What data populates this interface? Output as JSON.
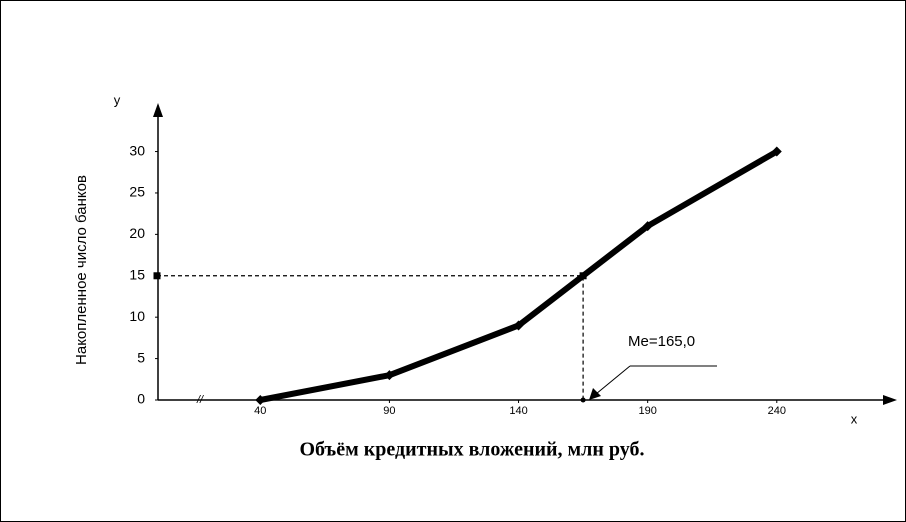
{
  "chart_data": {
    "type": "line",
    "x_label": "Объём кредитных вложений, млн руб.",
    "y_label": "Накопленное число банков",
    "x_axis_symbol": "х",
    "y_axis_symbol": "у",
    "x": [
      40,
      90,
      140,
      190,
      240
    ],
    "series": [
      {
        "name": "Накопленное число банков",
        "color": "#000000",
        "values": [
          0,
          3,
          9,
          21,
          30
        ]
      }
    ],
    "xlim": [
      0,
      285
    ],
    "ylim": [
      0,
      35.5
    ],
    "xticks": [
      40,
      90,
      140,
      190,
      240
    ],
    "yticks": [
      0,
      5,
      10,
      15,
      20,
      25,
      30
    ],
    "median": {
      "x": 165,
      "y": 15,
      "label": "Me=165,0"
    }
  }
}
